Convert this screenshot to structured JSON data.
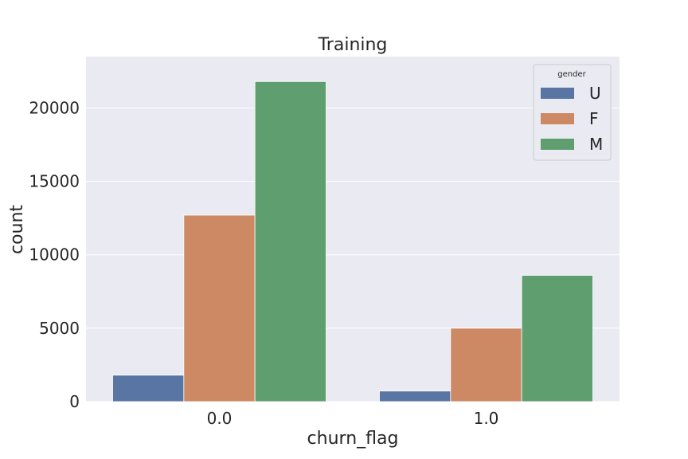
{
  "chart_data": {
    "type": "bar",
    "title": "Training",
    "xlabel": "churn_flag",
    "ylabel": "count",
    "categories": [
      "0.0",
      "1.0"
    ],
    "series": [
      {
        "name": "U",
        "values": [
          1800,
          720
        ],
        "color": "#5975a4"
      },
      {
        "name": "F",
        "values": [
          12700,
          5000
        ],
        "color": "#cc8963"
      },
      {
        "name": "M",
        "values": [
          21800,
          8600
        ],
        "color": "#5f9e6e"
      }
    ],
    "ylim": [
      0,
      23500
    ],
    "yticks": [
      0,
      5000,
      10000,
      15000,
      20000
    ],
    "grid": true,
    "legend": {
      "title": "gender",
      "placement": "top-right"
    },
    "background": "#eaeaf2"
  }
}
